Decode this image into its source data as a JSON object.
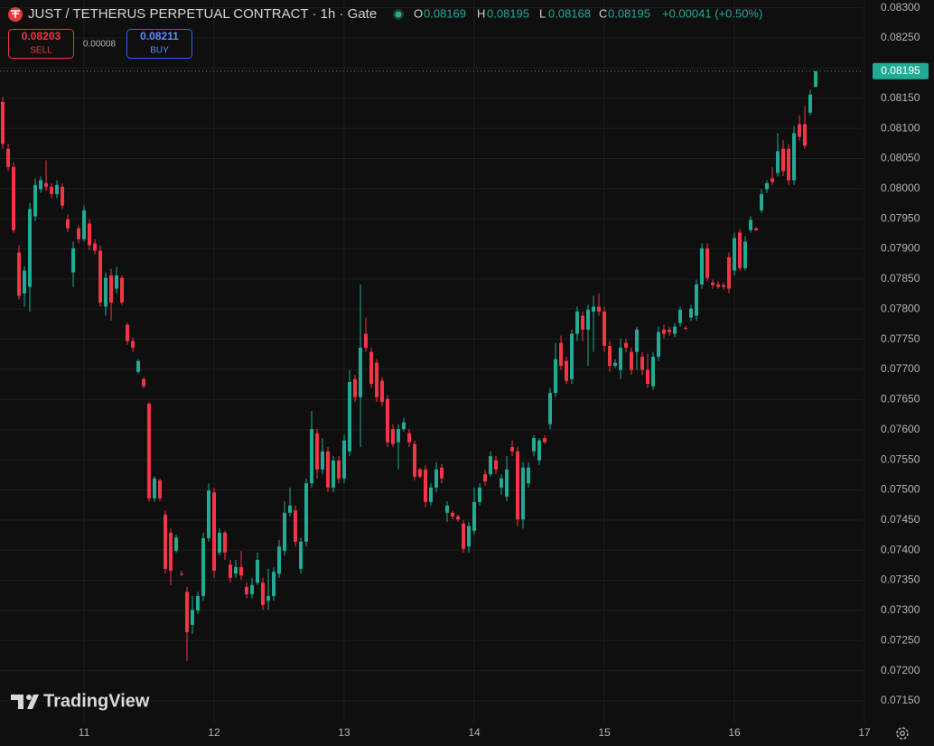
{
  "chart_data": {
    "type": "candlestick",
    "title": "JUST / TETHERUS PERPETUAL CONTRACT · 1h · Gate",
    "ohlc_labels": [
      "O",
      "H",
      "L",
      "C"
    ],
    "change": "+0.00041 (+0.50%)",
    "sell": {
      "price": 0.08203,
      "label": "SELL"
    },
    "spread": 8e-05,
    "buy": {
      "price": 0.08211,
      "label": "BUY"
    },
    "watermark": "TradingView",
    "up_color": "#22ab94",
    "down_color": "#f23645",
    "grid": true,
    "xlim": [
      10.354,
      16.986
    ],
    "xticks": [
      11,
      12,
      13,
      14,
      15,
      16,
      17
    ],
    "ylim": [
      0.07114,
      0.08313
    ],
    "yticks": [
      {
        "value": 0.083,
        "label": "0.08300"
      },
      {
        "value": 0.0825,
        "label": "0.08250"
      },
      {
        "value": 0.082,
        "label": "0.08200"
      },
      {
        "value": 0.0815,
        "label": "0.08150"
      },
      {
        "value": 0.081,
        "label": "0.08100"
      },
      {
        "value": 0.0805,
        "label": "0.08050"
      },
      {
        "value": 0.08,
        "label": "0.08000"
      },
      {
        "value": 0.0795,
        "label": "0.07950"
      },
      {
        "value": 0.079,
        "label": "0.07900"
      },
      {
        "value": 0.0785,
        "label": "0.07850"
      },
      {
        "value": 0.078,
        "label": "0.07800"
      },
      {
        "value": 0.0775,
        "label": "0.07750"
      },
      {
        "value": 0.077,
        "label": "0.07700"
      },
      {
        "value": 0.0765,
        "label": "0.07650"
      },
      {
        "value": 0.076,
        "label": "0.07600"
      },
      {
        "value": 0.0755,
        "label": "0.07550"
      },
      {
        "value": 0.075,
        "label": "0.07500"
      },
      {
        "value": 0.0745,
        "label": "0.07450"
      },
      {
        "value": 0.074,
        "label": "0.07400"
      },
      {
        "value": 0.0735,
        "label": "0.07350"
      },
      {
        "value": 0.073,
        "label": "0.07300"
      },
      {
        "value": 0.0725,
        "label": "0.07250"
      },
      {
        "value": 0.072,
        "label": "0.07200"
      },
      {
        "value": 0.0715,
        "label": "0.07150"
      }
    ],
    "x": [
      10.375,
      10.4167,
      10.4583,
      10.5,
      10.5417,
      10.5833,
      10.625,
      10.6667,
      10.7083,
      10.75,
      10.7917,
      10.8333,
      10.875,
      10.9167,
      10.9583,
      11,
      11.0417,
      11.0833,
      11.125,
      11.1667,
      11.2083,
      11.25,
      11.2917,
      11.3333,
      11.375,
      11.4167,
      11.4583,
      11.5,
      11.5417,
      11.5833,
      11.625,
      11.6667,
      11.7083,
      11.75,
      11.7917,
      11.8333,
      11.875,
      11.9167,
      11.9583,
      12,
      12.0417,
      12.0833,
      12.125,
      12.1667,
      12.2083,
      12.25,
      12.2917,
      12.3333,
      12.375,
      12.4167,
      12.4583,
      12.5,
      12.5417,
      12.5833,
      12.625,
      12.6667,
      12.7083,
      12.75,
      12.7917,
      12.8333,
      12.875,
      12.9167,
      12.9583,
      13,
      13.0417,
      13.0833,
      13.125,
      13.1667,
      13.2083,
      13.25,
      13.2917,
      13.3333,
      13.375,
      13.4167,
      13.4583,
      13.5,
      13.5417,
      13.5833,
      13.625,
      13.6667,
      13.7083,
      13.75,
      13.7917,
      13.8333,
      13.875,
      13.9167,
      13.9583,
      14,
      14.0417,
      14.0833,
      14.125,
      14.1667,
      14.2083,
      14.25,
      14.2917,
      14.3333,
      14.375,
      14.4167,
      14.4583,
      14.5,
      14.5417,
      14.5833,
      14.625,
      14.6667,
      14.7083,
      14.75,
      14.7917,
      14.8333,
      14.875,
      14.9167,
      14.9583,
      15,
      15.0417,
      15.0833,
      15.125,
      15.1667,
      15.2083,
      15.25,
      15.2917,
      15.3333,
      15.375,
      15.4167,
      15.4583,
      15.5,
      15.5417,
      15.5833,
      15.625,
      15.6667,
      15.7083,
      15.75,
      15.7917,
      15.8333,
      15.875,
      15.9167,
      15.9583,
      16,
      16.0417,
      16.0833,
      16.125,
      16.1667,
      16.2083,
      16.25,
      16.2917,
      16.3333,
      16.375,
      16.4167,
      16.4583,
      16.5,
      16.5417,
      16.5833,
      16.625
    ],
    "open": [
      0.08144,
      0.08066,
      0.08036,
      0.07894,
      0.07826,
      0.07837,
      0.07954,
      0.07999,
      0.08009,
      0.08003,
      0.07991,
      0.08003,
      0.07949,
      0.07861,
      0.07934,
      0.07916,
      0.07942,
      0.07909,
      0.07897,
      0.07804,
      0.07856,
      0.07834,
      0.07852,
      0.07774,
      0.07747,
      0.07696,
      0.07684,
      0.07643,
      0.07486,
      0.07516,
      0.07459,
      0.07429,
      0.07399,
      0.07361,
      0.07331,
      0.07276,
      0.073,
      0.07324,
      0.0742,
      0.07496,
      0.07396,
      0.07429,
      0.07376,
      0.07361,
      0.07372,
      0.07339,
      0.07327,
      0.07346,
      0.07346,
      0.07316,
      0.07324,
      0.07361,
      0.07399,
      0.07462,
      0.07466,
      0.07369,
      0.07414,
      0.07511,
      0.07594,
      0.07534,
      0.07564,
      0.07504,
      0.07549,
      0.07519,
      0.07564,
      0.07684,
      0.07654,
      0.07759,
      0.07729,
      0.07711,
      0.07681,
      0.07651,
      0.07601,
      0.07579,
      0.07601,
      0.07594,
      0.07576,
      0.07534,
      0.07534,
      0.0748,
      0.07504,
      0.07537,
      0.07462,
      0.07462,
      0.07456,
      0.07444,
      0.07406,
      0.07432,
      0.0748,
      0.07526,
      0.07526,
      0.07549,
      0.07504,
      0.07489,
      0.07571,
      0.07564,
      0.07451,
      0.07511,
      0.07564,
      0.07549,
      0.07586,
      0.07609,
      0.07661,
      0.07744,
      0.07714,
      0.07684,
      0.07759,
      0.07789,
      0.07766,
      0.07796,
      0.07804,
      0.07796,
      0.07739,
      0.07706,
      0.07699,
      0.07744,
      0.07729,
      0.07729,
      0.07721,
      0.07699,
      0.07672,
      0.07721,
      0.07766,
      0.07766,
      0.07759,
      0.07777,
      0.07769,
      0.07786,
      0.07789,
      0.07841,
      0.07901,
      0.07844,
      0.07841,
      0.0784,
      0.07886,
      0.07864,
      0.07927,
      0.07868,
      0.07931,
      0.07934,
      0.07964,
      0.07999,
      0.08017,
      0.08026,
      0.08066,
      0.08066,
      0.08014,
      0.08107,
      0.08107,
      0.08126,
      0.08169
    ],
    "high": [
      0.08152,
      0.08074,
      0.08044,
      0.07906,
      0.07871,
      0.07976,
      0.08017,
      0.0802,
      0.08047,
      0.08009,
      0.08014,
      0.08009,
      0.07957,
      0.07912,
      0.07939,
      0.07972,
      0.07949,
      0.07916,
      0.07906,
      0.07861,
      0.07867,
      0.0787,
      0.07856,
      0.07778,
      0.07753,
      0.07717,
      0.07687,
      0.07646,
      0.07523,
      0.07519,
      0.07466,
      0.07436,
      0.07426,
      0.07366,
      0.07339,
      0.07324,
      0.07331,
      0.07429,
      0.07511,
      0.07504,
      0.07436,
      0.07432,
      0.07384,
      0.07384,
      0.07399,
      0.07346,
      0.07354,
      0.07396,
      0.07354,
      0.07369,
      0.07372,
      0.07417,
      0.07481,
      0.07504,
      0.07474,
      0.07421,
      0.07519,
      0.07631,
      0.07601,
      0.07586,
      0.07571,
      0.07556,
      0.07556,
      0.07591,
      0.07699,
      0.07691,
      0.07841,
      0.07786,
      0.07736,
      0.07717,
      0.07687,
      0.07657,
      0.07609,
      0.07609,
      0.0762,
      0.07601,
      0.07582,
      0.07537,
      0.07541,
      0.07511,
      0.07546,
      0.07543,
      0.07481,
      0.07466,
      0.07459,
      0.0745,
      0.07447,
      0.07504,
      0.07511,
      0.07534,
      0.07564,
      0.07556,
      0.07526,
      0.07556,
      0.07582,
      0.07571,
      0.07546,
      0.07546,
      0.07591,
      0.07586,
      0.07591,
      0.07669,
      0.07744,
      0.07756,
      0.07721,
      0.07766,
      0.07804,
      0.07796,
      0.07807,
      0.07822,
      0.07826,
      0.07804,
      0.07747,
      0.07717,
      0.07751,
      0.07751,
      0.07736,
      0.07771,
      0.07729,
      0.07726,
      0.07729,
      0.07771,
      0.07774,
      0.07771,
      0.07777,
      0.07804,
      0.07772,
      0.07807,
      0.07849,
      0.07909,
      0.07909,
      0.07849,
      0.07846,
      0.07844,
      0.07894,
      0.07927,
      0.07933,
      0.07921,
      0.07954,
      0.07936,
      0.07999,
      0.08014,
      0.08036,
      0.08092,
      0.08081,
      0.08074,
      0.08104,
      0.08122,
      0.08137,
      0.08164,
      0.08195
    ],
    "low": [
      0.08066,
      0.08029,
      0.07927,
      0.07816,
      0.07804,
      0.07796,
      0.07946,
      0.07993,
      0.07996,
      0.07984,
      0.07984,
      0.07966,
      0.07928,
      0.07837,
      0.07909,
      0.07912,
      0.07898,
      0.07891,
      0.07804,
      0.07789,
      0.07781,
      0.07826,
      0.07807,
      0.07741,
      0.07729,
      0.07693,
      0.07669,
      0.07481,
      0.0748,
      0.07481,
      0.07361,
      0.07342,
      0.07396,
      0.07357,
      0.07216,
      0.07261,
      0.07294,
      0.07316,
      0.07414,
      0.07354,
      0.07391,
      0.07384,
      0.07346,
      0.07354,
      0.07351,
      0.0732,
      0.0732,
      0.07342,
      0.07301,
      0.07301,
      0.07316,
      0.07354,
      0.07391,
      0.07456,
      0.07406,
      0.07361,
      0.07406,
      0.07504,
      0.07519,
      0.07526,
      0.07496,
      0.07496,
      0.07511,
      0.07511,
      0.07556,
      0.07646,
      0.07571,
      0.07729,
      0.07669,
      0.07646,
      0.07639,
      0.07571,
      0.07571,
      0.07534,
      0.07597,
      0.07571,
      0.07516,
      0.07519,
      0.07471,
      0.07474,
      0.07496,
      0.07511,
      0.07447,
      0.07451,
      0.07447,
      0.07396,
      0.07396,
      0.07426,
      0.07474,
      0.07507,
      0.07522,
      0.07526,
      0.07492,
      0.07481,
      0.07556,
      0.0744,
      0.07436,
      0.07504,
      0.07556,
      0.07541,
      0.07576,
      0.07601,
      0.07654,
      0.07699,
      0.07676,
      0.07676,
      0.07747,
      0.07747,
      0.07706,
      0.07729,
      0.07789,
      0.07729,
      0.07696,
      0.07702,
      0.07684,
      0.07729,
      0.07691,
      0.07699,
      0.07691,
      0.07669,
      0.07666,
      0.07714,
      0.07751,
      0.07756,
      0.07753,
      0.07771,
      0.07765,
      0.0778,
      0.07781,
      0.07834,
      0.07846,
      0.07834,
      0.07834,
      0.07832,
      0.07826,
      0.07856,
      0.07864,
      0.07864,
      0.07927,
      0.0793,
      0.0796,
      0.07993,
      0.08006,
      0.0802,
      0.08021,
      0.08006,
      0.08006,
      0.0808,
      0.08066,
      0.08122,
      0.08168
    ],
    "close": [
      0.08074,
      0.08036,
      0.07931,
      0.07822,
      0.07864,
      0.07966,
      0.08006,
      0.08014,
      0.08003,
      0.07991,
      0.08006,
      0.07972,
      0.07934,
      0.07901,
      0.07916,
      0.07964,
      0.07906,
      0.07897,
      0.07811,
      0.07852,
      0.07811,
      0.07856,
      0.07811,
      0.07747,
      0.07736,
      0.07714,
      0.07672,
      0.07486,
      0.07519,
      0.07486,
      0.07369,
      0.07366,
      0.07421,
      0.0736,
      0.07264,
      0.07301,
      0.07324,
      0.0742,
      0.07499,
      0.07366,
      0.07429,
      0.07396,
      0.07354,
      0.07372,
      0.07358,
      0.07327,
      0.07342,
      0.07384,
      0.07309,
      0.07324,
      0.07364,
      0.07406,
      0.07462,
      0.07474,
      0.07414,
      0.07414,
      0.07511,
      0.07601,
      0.07534,
      0.07564,
      0.07504,
      0.07549,
      0.07519,
      0.07582,
      0.07679,
      0.07654,
      0.07736,
      0.07736,
      0.07676,
      0.07654,
      0.07646,
      0.07579,
      0.07576,
      0.07601,
      0.07612,
      0.07579,
      0.07522,
      0.07522,
      0.0748,
      0.07504,
      0.07534,
      0.07519,
      0.07474,
      0.07456,
      0.07451,
      0.07402,
      0.0744,
      0.0748,
      0.07504,
      0.07514,
      0.07556,
      0.07534,
      0.07519,
      0.07534,
      0.07564,
      0.07451,
      0.07537,
      0.07537,
      0.07586,
      0.07582,
      0.07579,
      0.07661,
      0.07717,
      0.07706,
      0.07681,
      0.07759,
      0.07796,
      0.07766,
      0.07799,
      0.07804,
      0.07796,
      0.07739,
      0.07706,
      0.07711,
      0.07736,
      0.07736,
      0.07699,
      0.07766,
      0.07699,
      0.07676,
      0.07721,
      0.07762,
      0.07759,
      0.07762,
      0.07771,
      0.07799,
      0.07768,
      0.07801,
      0.07841,
      0.07901,
      0.07852,
      0.0784,
      0.07837,
      0.07837,
      0.07834,
      0.07918,
      0.07868,
      0.07912,
      0.07948,
      0.07931,
      0.07991,
      0.08009,
      0.08011,
      0.08062,
      0.08029,
      0.08014,
      0.08092,
      0.08086,
      0.08071,
      0.08156,
      0.08195
    ]
  }
}
